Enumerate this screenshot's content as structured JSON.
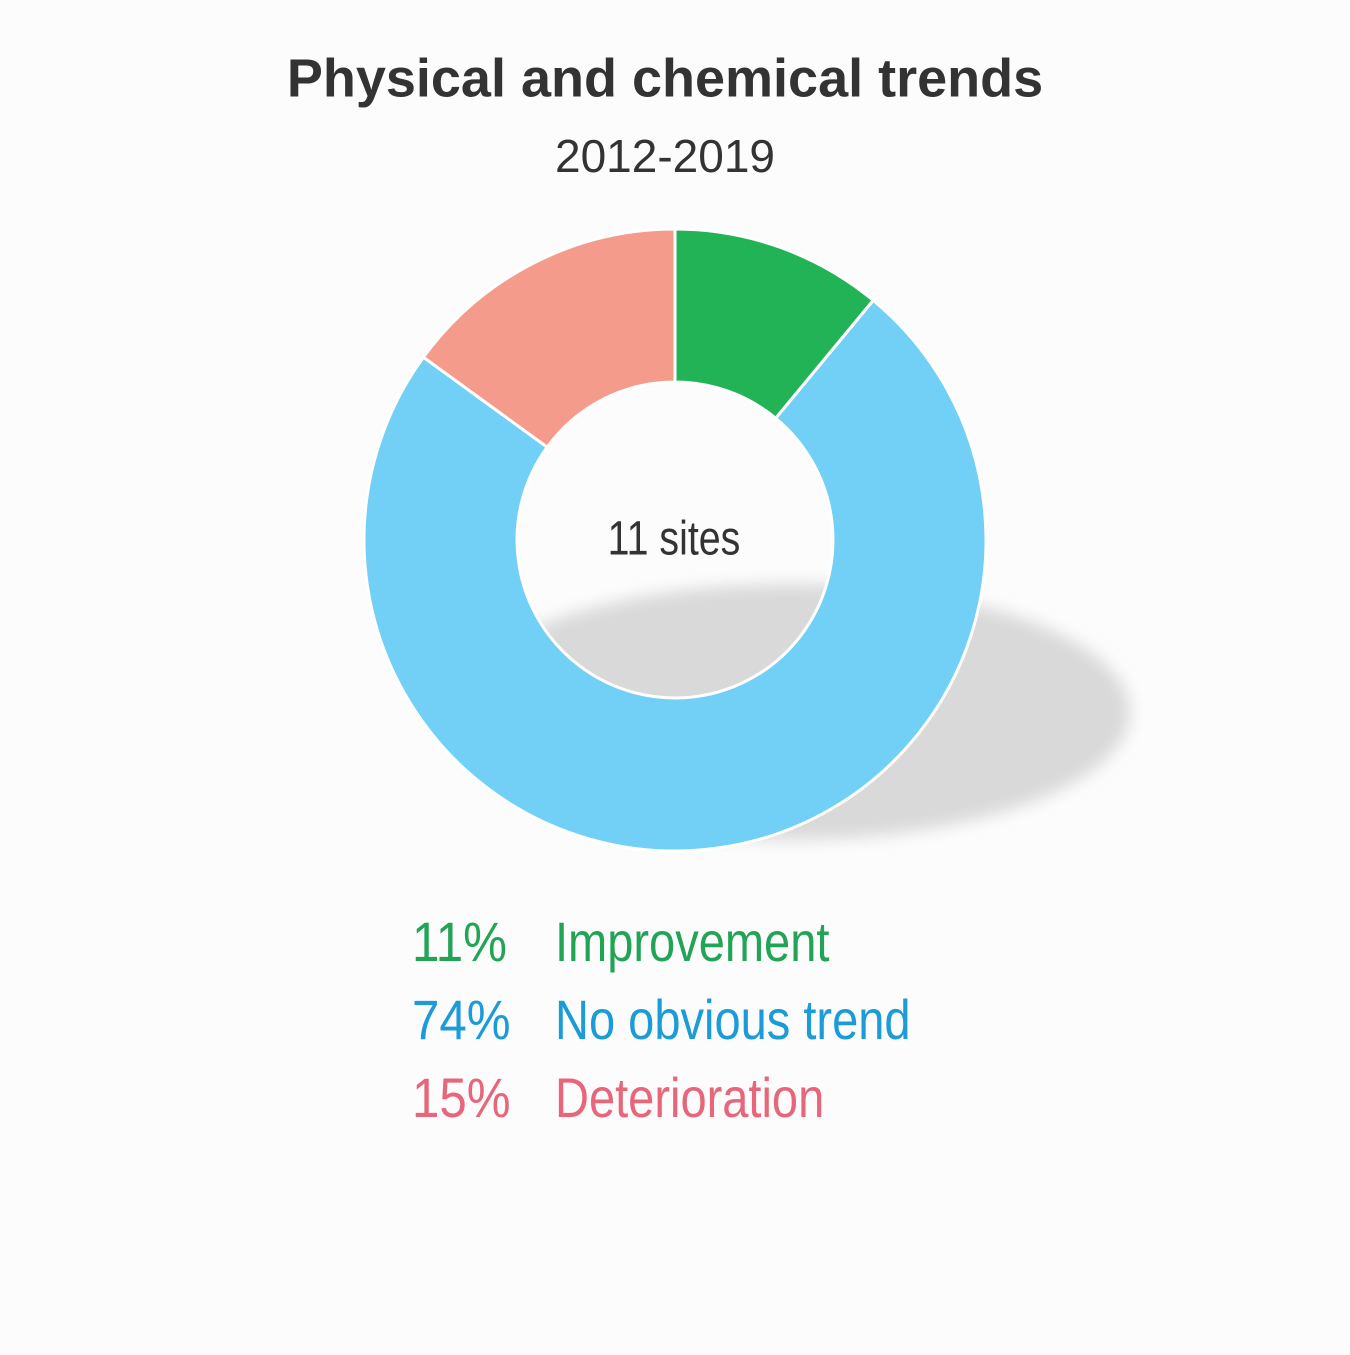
{
  "chart_data": {
    "type": "donut",
    "title": "Physical and chemical trends",
    "subtitle": "2012-2019",
    "center_label": "11 sites",
    "categories": [
      "Improvement",
      "No obvious trend",
      "Deterioration"
    ],
    "values": [
      11,
      74,
      15
    ],
    "value_labels": [
      "11%",
      "74%",
      "15%"
    ],
    "colors": [
      "#23b357",
      "#72cff5",
      "#f59b8c"
    ],
    "label_colors": [
      "#22a457",
      "#1b9bd7",
      "#e8667a"
    ]
  }
}
